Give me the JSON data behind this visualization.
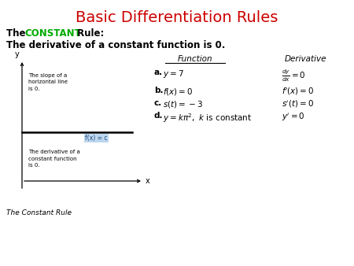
{
  "title": "Basic Differentiation Rules",
  "title_color": "#CC0000",
  "title_fontsize": 14,
  "bg_color": "#FFFFFF",
  "subtitle1_bold_color": "#00AA00",
  "graph_label_fx_bg": "#BDD7EE",
  "graph_label_fx_color": "#1F497D",
  "col_header_func": "Function",
  "col_header_deriv": "Derivative"
}
